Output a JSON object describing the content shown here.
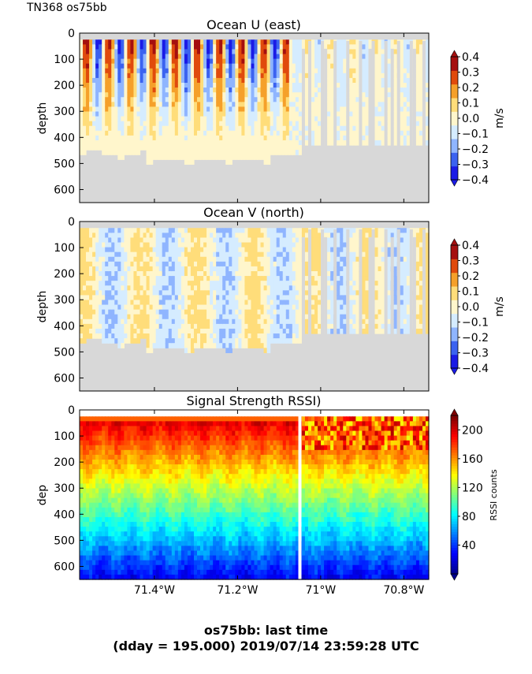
{
  "header": {
    "cruise_label": "TN368 os75bb"
  },
  "footer": {
    "line1": "os75bb: last time",
    "line2": "(dday = 195.000) 2019/07/14 23:59:28 UTC"
  },
  "colors": {
    "no_data": "#d8d8d8",
    "diverging_levels": [
      "#1a1ae6",
      "#3b62f0",
      "#8fb5ff",
      "#d5ecff",
      "#fff6cc",
      "#ffdd7a",
      "#f5a02a",
      "#e04a0c",
      "#a50f0f"
    ],
    "rssi_cmap": [
      "#00008f",
      "#0000ff",
      "#007fff",
      "#00ffff",
      "#7fff7f",
      "#ffff00",
      "#ff7f00",
      "#ff0000",
      "#7f0000"
    ]
  },
  "chart_data": [
    {
      "type": "heatmap",
      "title": "Ocean U (east)",
      "ylabel": "depth",
      "colorbar_label": "m/s",
      "colorbar_ticks": [
        "0.4",
        "0.3",
        "0.2",
        "0.1",
        "0.0",
        "−0.1",
        "−0.2",
        "−0.3",
        "−0.4"
      ],
      "colorbar_range": [
        -0.4,
        0.4
      ],
      "y_ticks": [
        "0",
        "100",
        "200",
        "300",
        "400",
        "500",
        "600"
      ],
      "ylim": [
        650,
        0
      ],
      "xlim": [
        -71.58,
        -70.74
      ],
      "x_ticks": [
        -71.4,
        -71.2,
        -71.0,
        -70.8
      ],
      "x_tick_labels": [
        "71.4°W",
        "71.2°W",
        "71°W",
        "70.8°W"
      ],
      "show_x_tick_labels": false,
      "field": "u"
    },
    {
      "type": "heatmap",
      "title": "Ocean V (north)",
      "ylabel": "depth",
      "colorbar_label": "m/s",
      "colorbar_ticks": [
        "0.4",
        "0.3",
        "0.2",
        "0.1",
        "0.0",
        "−0.1",
        "−0.2",
        "−0.3",
        "−0.4"
      ],
      "colorbar_range": [
        -0.4,
        0.4
      ],
      "y_ticks": [
        "0",
        "100",
        "200",
        "300",
        "400",
        "500",
        "600"
      ],
      "ylim": [
        650,
        0
      ],
      "xlim": [
        -71.58,
        -70.74
      ],
      "x_ticks": [
        -71.4,
        -71.2,
        -71.0,
        -70.8
      ],
      "x_tick_labels": [
        "71.4°W",
        "71.2°W",
        "71°W",
        "70.8°W"
      ],
      "show_x_tick_labels": false,
      "field": "v"
    },
    {
      "type": "heatmap",
      "title": "Signal Strength RSSI)",
      "ylabel": "dep",
      "colorbar_label": "RSSI counts",
      "colorbar_ticks": [
        "200",
        "160",
        "120",
        "80",
        "40"
      ],
      "colorbar_range": [
        0,
        220
      ],
      "y_ticks": [
        "0",
        "100",
        "200",
        "300",
        "400",
        "500",
        "600"
      ],
      "ylim": [
        650,
        0
      ],
      "xlim": [
        -71.58,
        -70.74
      ],
      "x_ticks": [
        -71.4,
        -71.2,
        -71.0,
        -70.8
      ],
      "x_tick_labels": [
        "71.4°W",
        "71.2°W",
        "71°W",
        "70.8°W"
      ],
      "show_x_tick_labels": true,
      "field": "rssi",
      "data_gap_at_lon": -71.05
    }
  ]
}
